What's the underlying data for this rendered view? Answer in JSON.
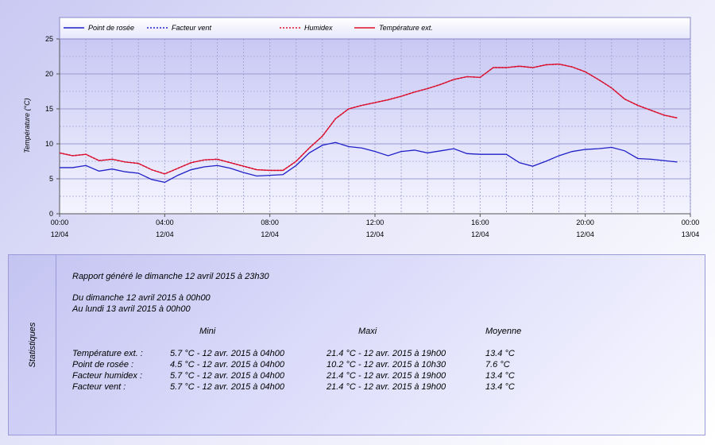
{
  "chart_data": {
    "type": "line",
    "ylabel": "Température (°C)",
    "ylim": [
      0,
      25
    ],
    "y_ticks": [
      "0",
      "5",
      "10",
      "15",
      "20",
      "25"
    ],
    "x_range_hours": [
      0,
      24
    ],
    "x_ticks": [
      {
        "time": "00:00",
        "date": "12/04"
      },
      {
        "time": "04:00",
        "date": "12/04"
      },
      {
        "time": "08:00",
        "date": "12/04"
      },
      {
        "time": "12:00",
        "date": "12/04"
      },
      {
        "time": "16:00",
        "date": "12/04"
      },
      {
        "time": "20:00",
        "date": "12/04"
      },
      {
        "time": "00:00",
        "date": "13/04"
      }
    ],
    "legend_placement": "top",
    "grid": true,
    "x_hours": [
      0,
      0.5,
      1,
      1.5,
      2,
      2.5,
      3,
      3.5,
      4,
      4.5,
      5,
      5.5,
      6,
      6.5,
      7,
      7.5,
      8,
      8.5,
      9,
      9.5,
      10,
      10.5,
      11,
      11.5,
      12,
      12.5,
      13,
      13.5,
      14,
      14.5,
      15,
      15.5,
      16,
      16.5,
      17,
      17.5,
      18,
      18.5,
      19,
      19.5,
      20,
      20.5,
      21,
      21.5,
      22,
      22.5,
      23,
      23.5
    ],
    "series": [
      {
        "name": "Point de rosée",
        "color": "#2020c8",
        "dash": "solid",
        "values": [
          6.6,
          6.6,
          6.9,
          6.1,
          6.4,
          6.0,
          5.8,
          4.9,
          4.5,
          5.5,
          6.3,
          6.7,
          6.9,
          6.5,
          5.9,
          5.4,
          5.5,
          5.6,
          6.9,
          8.7,
          9.8,
          10.2,
          9.6,
          9.4,
          8.9,
          8.3,
          8.9,
          9.1,
          8.7,
          9.0,
          9.3,
          8.6,
          8.5,
          8.5,
          8.5,
          7.3,
          6.8,
          7.5,
          8.3,
          8.9,
          9.2,
          9.3,
          9.5,
          9.0,
          7.9,
          7.8,
          7.6,
          7.4
        ]
      },
      {
        "name": "Facteur vent",
        "color": "#2020c8",
        "dash": "dotted",
        "values": [
          8.7,
          8.3,
          8.5,
          7.6,
          7.8,
          7.4,
          7.2,
          6.3,
          5.7,
          6.5,
          7.3,
          7.7,
          7.8,
          7.3,
          6.8,
          6.3,
          6.2,
          6.2,
          7.5,
          9.4,
          11.1,
          13.6,
          15.0,
          15.5,
          15.9,
          16.3,
          16.8,
          17.4,
          17.9,
          18.5,
          19.2,
          19.6,
          19.5,
          20.9,
          20.9,
          21.1,
          20.9,
          21.3,
          21.4,
          21.0,
          20.3,
          19.2,
          18.0,
          16.4,
          15.5,
          14.8,
          14.1,
          13.7
        ]
      },
      {
        "name": "Humidex",
        "color": "#e0102a",
        "dash": "dotted",
        "values": [
          8.7,
          8.3,
          8.5,
          7.6,
          7.8,
          7.4,
          7.2,
          6.3,
          5.7,
          6.5,
          7.3,
          7.7,
          7.8,
          7.3,
          6.8,
          6.3,
          6.2,
          6.2,
          7.5,
          9.4,
          11.1,
          13.6,
          15.0,
          15.5,
          15.9,
          16.3,
          16.8,
          17.4,
          17.9,
          18.5,
          19.2,
          19.6,
          19.5,
          20.9,
          20.9,
          21.1,
          20.9,
          21.3,
          21.4,
          21.0,
          20.3,
          19.2,
          18.0,
          16.4,
          15.5,
          14.8,
          14.1,
          13.7
        ]
      },
      {
        "name": "Température ext.",
        "color": "#e0102a",
        "dash": "solid",
        "values": [
          8.7,
          8.3,
          8.5,
          7.6,
          7.8,
          7.4,
          7.2,
          6.3,
          5.7,
          6.5,
          7.3,
          7.7,
          7.8,
          7.3,
          6.8,
          6.3,
          6.2,
          6.2,
          7.5,
          9.4,
          11.1,
          13.6,
          15.0,
          15.5,
          15.9,
          16.3,
          16.8,
          17.4,
          17.9,
          18.5,
          19.2,
          19.6,
          19.5,
          20.9,
          20.9,
          21.1,
          20.9,
          21.3,
          21.4,
          21.0,
          20.3,
          19.2,
          18.0,
          16.4,
          15.5,
          14.8,
          14.1,
          13.7
        ]
      }
    ]
  },
  "stats": {
    "side_label": "Statistiques",
    "report_line": "Rapport généré le dimanche 12 avril 2015 à 23h30",
    "from_line": "Du dimanche 12 avril 2015 à 00h00",
    "to_line": "Au lundi 13 avril 2015 à 00h00",
    "headers": {
      "mini": "Mini",
      "maxi": "Maxi",
      "moyenne": "Moyenne"
    },
    "rows": [
      {
        "label": "Température ext. :",
        "mini": "5.7 °C - 12 avr. 2015 à 04h00",
        "maxi": "21.4 °C - 12 avr. 2015 à 19h00",
        "moyenne": "13.4 °C"
      },
      {
        "label": "Point de rosée :",
        "mini": "4.5 °C - 12 avr. 2015 à 04h00",
        "maxi": "10.2 °C - 12 avr. 2015 à 10h30",
        "moyenne": "7.6 °C"
      },
      {
        "label": "Facteur humidex :",
        "mini": "5.7 °C - 12 avr. 2015 à 04h00",
        "maxi": "21.4 °C - 12 avr. 2015 à 19h00",
        "moyenne": "13.4 °C"
      },
      {
        "label": "Facteur vent :",
        "mini": "5.7 °C - 12 avr. 2015 à 04h00",
        "maxi": "21.4 °C - 12 avr. 2015 à 19h00",
        "moyenne": "13.4 °C"
      }
    ]
  }
}
